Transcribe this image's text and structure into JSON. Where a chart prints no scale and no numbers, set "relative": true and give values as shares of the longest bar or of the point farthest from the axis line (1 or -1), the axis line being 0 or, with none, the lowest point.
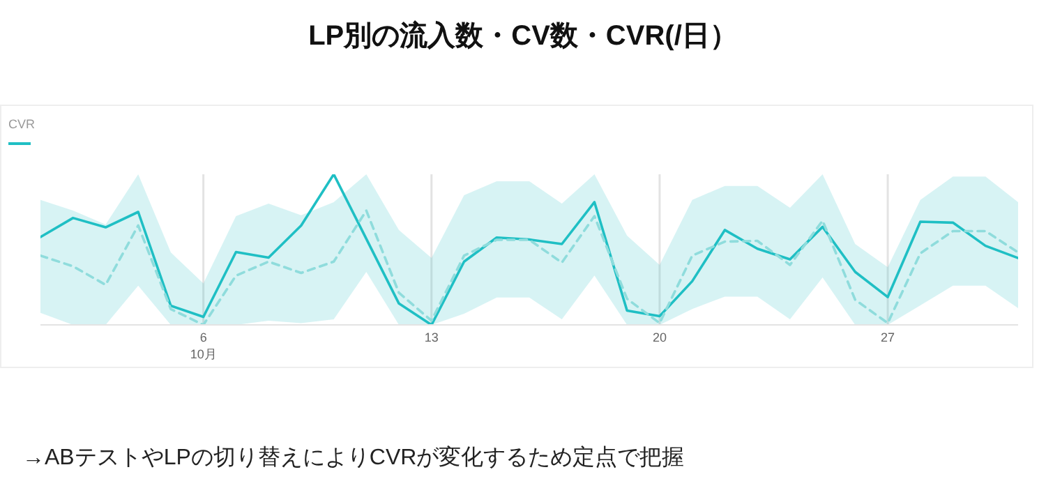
{
  "chart_data": {
    "type": "line",
    "title": "LP別の流入数・CV数・CVR(/日）",
    "annotations": [
      "→ABテストやLPの切り替えによりCVRが変化するため定点で把握"
    ],
    "relative": true,
    "legend": "top left",
    "grid": "x",
    "x": [
      1,
      2,
      3,
      4,
      5,
      6,
      7,
      8,
      9,
      10,
      11,
      12,
      13,
      14,
      15,
      16,
      17,
      18,
      19,
      20,
      21,
      22,
      23,
      24,
      25,
      26,
      27,
      28,
      29,
      30,
      31
    ],
    "xlim": [
      1,
      31
    ],
    "xticks": [
      {
        "value": 6,
        "label": "6\n10月"
      },
      13,
      20,
      27
    ],
    "series": [
      {
        "name": "CVR",
        "color": "#1fbfc4",
        "line_style": "solid",
        "values": [
          0.583,
          0.71,
          0.648,
          0.75,
          0.127,
          0.053,
          0.484,
          0.447,
          0.66,
          1.0,
          0.571,
          0.142,
          0,
          0.42,
          0.58,
          0.567,
          0.537,
          0.815,
          0.095,
          0.058,
          0.29,
          0.63,
          0.506,
          0.435,
          0.651,
          0.352,
          0.185,
          0.685,
          0.679,
          0.525,
          0.444
        ],
        "lower": [
          0.08,
          0,
          0,
          0.26,
          0,
          0,
          0,
          0.028,
          0.012,
          0.037,
          0.352,
          0,
          0,
          0.074,
          0.182,
          0.182,
          0.037,
          0.327,
          0,
          0,
          0.105,
          0.188,
          0.188,
          0.037,
          0.315,
          0,
          0,
          0.13,
          0.26,
          0.26,
          0.111
        ],
        "upper": [
          0.83,
          0.759,
          0.667,
          1,
          0.481,
          0.275,
          0.722,
          0.806,
          0.728,
          0.815,
          1,
          0.63,
          0.444,
          0.861,
          0.954,
          0.954,
          0.806,
          1,
          0.593,
          0.398,
          0.83,
          0.923,
          0.923,
          0.778,
          1,
          0.537,
          0.383,
          0.83,
          0.985,
          0.985,
          0.815
        ]
      },
      {
        "color": "#8fdcdc",
        "line_style": "dashed",
        "values": [
          0.46,
          0.389,
          0.266,
          0.66,
          0.105,
          0,
          0.327,
          0.42,
          0.345,
          0.42,
          0.759,
          0.213,
          0.028,
          0.46,
          0.565,
          0.565,
          0.414,
          0.722,
          0.173,
          0.012,
          0.46,
          0.553,
          0.558,
          0.398,
          0.692,
          0.167,
          0.012,
          0.475,
          0.623,
          0.623,
          0.481
        ]
      }
    ]
  }
}
